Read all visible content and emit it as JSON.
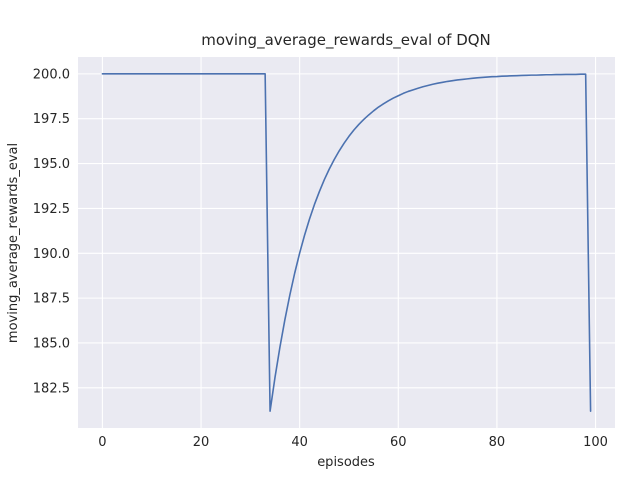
{
  "figure": {
    "title": "moving_average_rewards_eval of DQN",
    "xlabel": "episodes",
    "ylabel": "moving_average_rewards_eval"
  },
  "chart_data": {
    "type": "line",
    "title": "moving_average_rewards_eval of DQN",
    "xlabel": "episodes",
    "ylabel": "moving_average_rewards_eval",
    "legend": "none",
    "grid": true,
    "style": "seaborn-darkgrid",
    "colors": {
      "line": "#4c72b0",
      "axes_bg": "#eaeaf2",
      "grid": "#ffffff",
      "text": "#262626",
      "figure_bg": "#ffffff"
    },
    "xlim": [
      -4.95,
      103.95
    ],
    "ylim": [
      180.26,
      200.94
    ],
    "xticks": [
      0,
      20,
      40,
      60,
      80,
      100
    ],
    "xtick_labels": [
      "0",
      "20",
      "40",
      "60",
      "80",
      "100"
    ],
    "yticks": [
      182.5,
      185.0,
      187.5,
      190.0,
      192.5,
      195.0,
      197.5,
      200.0
    ],
    "ytick_labels": [
      "182.5",
      "185.0",
      "187.5",
      "190.0",
      "192.5",
      "195.0",
      "197.5",
      "200.0"
    ],
    "x": [
      0,
      1,
      2,
      3,
      4,
      5,
      6,
      7,
      8,
      9,
      10,
      11,
      12,
      13,
      14,
      15,
      16,
      17,
      18,
      19,
      20,
      21,
      22,
      23,
      24,
      25,
      26,
      27,
      28,
      29,
      30,
      31,
      32,
      33,
      34,
      35,
      36,
      37,
      38,
      39,
      40,
      41,
      42,
      43,
      44,
      45,
      46,
      47,
      48,
      49,
      50,
      51,
      52,
      53,
      54,
      55,
      56,
      57,
      58,
      59,
      60,
      61,
      62,
      63,
      64,
      65,
      66,
      67,
      68,
      69,
      70,
      71,
      72,
      73,
      74,
      75,
      76,
      77,
      78,
      79,
      80,
      81,
      82,
      83,
      84,
      85,
      86,
      87,
      88,
      89,
      90,
      91,
      92,
      93,
      94,
      95,
      96,
      97,
      98,
      99
    ],
    "y": [
      200.0,
      200.0,
      200.0,
      200.0,
      200.0,
      200.0,
      200.0,
      200.0,
      200.0,
      200.0,
      200.0,
      200.0,
      200.0,
      200.0,
      200.0,
      200.0,
      200.0,
      200.0,
      200.0,
      200.0,
      200.0,
      200.0,
      200.0,
      200.0,
      200.0,
      200.0,
      200.0,
      200.0,
      200.0,
      200.0,
      200.0,
      200.0,
      200.0,
      200.0,
      181.2,
      183.08,
      184.77,
      186.29,
      187.66,
      188.9,
      190.01,
      191.01,
      191.91,
      192.72,
      193.44,
      194.1,
      194.69,
      195.22,
      195.7,
      196.13,
      196.52,
      196.87,
      197.18,
      197.46,
      197.71,
      197.94,
      198.15,
      198.33,
      198.5,
      198.65,
      198.78,
      198.91,
      199.02,
      199.11,
      199.2,
      199.28,
      199.35,
      199.42,
      199.48,
      199.53,
      199.58,
      199.62,
      199.66,
      199.69,
      199.72,
      199.75,
      199.78,
      199.8,
      199.82,
      199.84,
      199.85,
      199.87,
      199.88,
      199.89,
      199.9,
      199.91,
      199.92,
      199.93,
      199.93,
      199.94,
      199.95,
      199.95,
      199.96,
      199.96,
      199.97,
      199.97,
      199.97,
      199.98,
      199.98,
      181.2
    ]
  }
}
